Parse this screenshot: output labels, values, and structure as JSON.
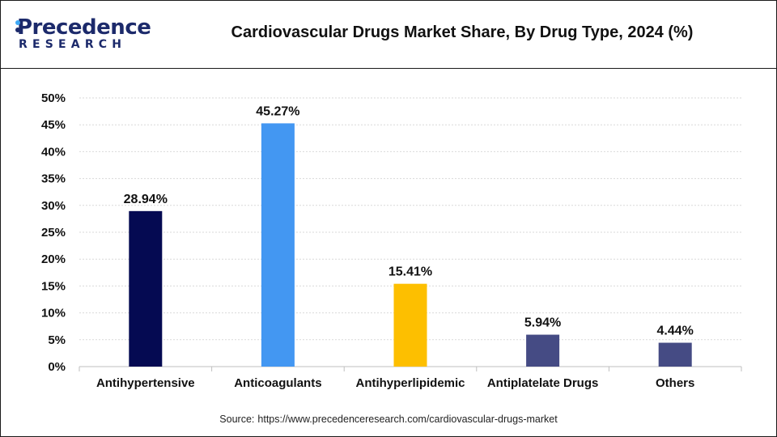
{
  "header": {
    "brand_name": "Precedence",
    "brand_sub": "RESEARCH",
    "title": "Cardiovascular Drugs Market Share, By Drug Type, 2024 (%)"
  },
  "colors": {
    "brand": "#1c2a6b",
    "brand_accent": "#3fa9f5",
    "grid": "#d9d9d9",
    "axis": "#bfbfbf"
  },
  "footer": {
    "source_label": "Source:",
    "source_url": "https://www.precedenceresearch.com/cardiovascular-drugs-market"
  },
  "chart_data": {
    "type": "bar",
    "title": "Cardiovascular Drugs Market Share, By Drug Type, 2024 (%)",
    "xlabel": "",
    "ylabel": "",
    "categories": [
      "Antihypertensive",
      "Anticoagulants",
      "Antihyperlipidemic",
      "Antiplatelate Drugs",
      "Others"
    ],
    "values": [
      28.94,
      45.27,
      15.41,
      5.94,
      4.44
    ],
    "value_labels": [
      "28.94%",
      "45.27%",
      "15.41%",
      "5.94%",
      "4.44%"
    ],
    "bar_colors": [
      "#050a52",
      "#4397f2",
      "#fdbf00",
      "#454b84",
      "#454b84"
    ],
    "ylim": [
      0,
      50
    ],
    "yticks": [
      0,
      5,
      10,
      15,
      20,
      25,
      30,
      35,
      40,
      45,
      50
    ],
    "ytick_labels": [
      "0%",
      "5%",
      "10%",
      "15%",
      "20%",
      "25%",
      "30%",
      "35%",
      "40%",
      "45%",
      "50%"
    ],
    "grid": true,
    "legend": "none"
  }
}
